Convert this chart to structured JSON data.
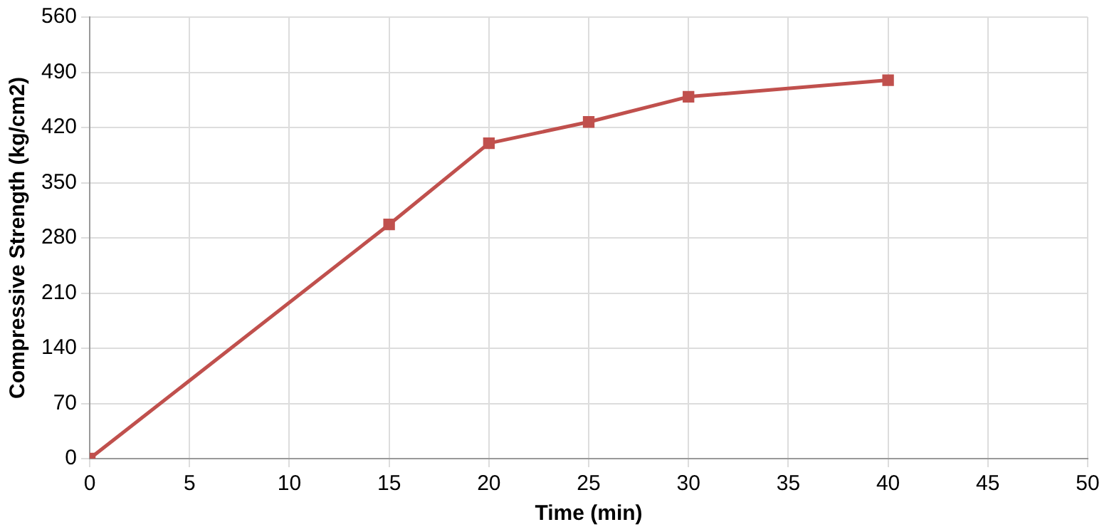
{
  "chart_data": {
    "type": "line",
    "xlabel": "Time (min)",
    "ylabel": "Compressive Strength (kg/cm2)",
    "x": [
      0,
      15,
      20,
      25,
      30,
      40
    ],
    "series": [
      {
        "color": "#c0504d",
        "values": [
          0,
          297,
          400,
          427,
          459,
          480
        ]
      }
    ],
    "xlim": [
      0,
      50
    ],
    "xticks": [
      0,
      5,
      10,
      15,
      20,
      25,
      30,
      35,
      40,
      45,
      50
    ],
    "ylim": [
      0,
      560
    ],
    "yticks": [
      0,
      70,
      140,
      210,
      280,
      350,
      420,
      490,
      560
    ],
    "grid": true,
    "marker": "square",
    "line_style": "solid",
    "legend": false
  }
}
